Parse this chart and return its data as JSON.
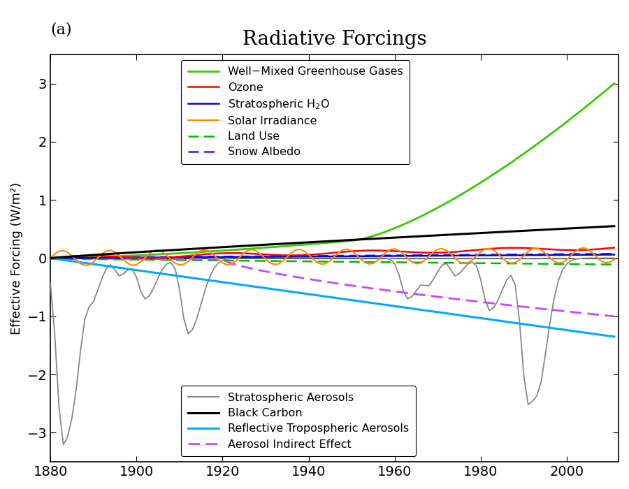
{
  "title": "Radiative Forcings",
  "subtitle": "(a)",
  "xlabel": "",
  "ylabel": "Effective Forcing (W/m²)",
  "xlim": [
    1880,
    2012
  ],
  "ylim": [
    -3.5,
    3.5
  ],
  "yticks": [
    -3,
    -2,
    -1,
    0,
    1,
    2,
    3
  ],
  "xticks": [
    1880,
    1900,
    1920,
    1940,
    1960,
    1980,
    2000
  ],
  "series": {
    "ghg": {
      "label": "Well−Mixed Greenhouse Gases",
      "color": "#33cc00",
      "linestyle": "solid",
      "linewidth": 2.0
    },
    "ozone": {
      "label": "Ozone",
      "color": "#ff0000",
      "linestyle": "solid",
      "linewidth": 1.8
    },
    "strat_h2o": {
      "label": "Stratospheric H₂O",
      "color": "#0000dd",
      "linestyle": "solid",
      "linewidth": 1.8
    },
    "solar": {
      "label": "Solar Irradiance",
      "color": "#ff8800",
      "linestyle": "solid",
      "linewidth": 1.5
    },
    "land_use": {
      "label": "Land Use",
      "color": "#00bb00",
      "linestyle": "dashed",
      "linewidth": 1.8
    },
    "snow_albedo": {
      "label": "Snow Albedo",
      "color": "#2222ff",
      "linestyle": "dashed",
      "linewidth": 1.8
    },
    "strat_aerosols": {
      "label": "Stratospheric Aerosols",
      "color": "#888888",
      "linestyle": "solid",
      "linewidth": 1.3
    },
    "black_carbon": {
      "label": "Black Carbon",
      "color": "#000000",
      "linestyle": "solid",
      "linewidth": 2.2
    },
    "reflective_aerosols": {
      "label": "Reflective Tropospheric Aerosols",
      "color": "#00aaff",
      "linestyle": "solid",
      "linewidth": 2.2
    },
    "aerosol_indirect": {
      "label": "Aerosol Indirect Effect",
      "color": "#cc44ff",
      "linestyle": "dashed",
      "linewidth": 2.0
    }
  }
}
